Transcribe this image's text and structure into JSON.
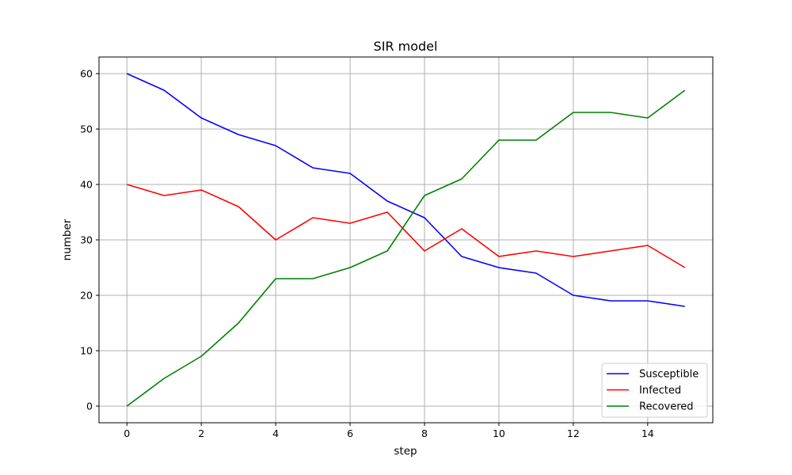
{
  "chart_data": {
    "type": "line",
    "title": "SIR model",
    "xlabel": "step",
    "ylabel": "number",
    "xlim": [
      -0.75,
      15.75
    ],
    "ylim": [
      -3,
      63
    ],
    "xticks": [
      0,
      2,
      4,
      6,
      8,
      10,
      12,
      14
    ],
    "yticks": [
      0,
      10,
      20,
      30,
      40,
      50,
      60
    ],
    "grid": true,
    "legend_position": "lower-right",
    "x": [
      0,
      1,
      2,
      3,
      4,
      5,
      6,
      7,
      8,
      9,
      10,
      11,
      12,
      13,
      14,
      15
    ],
    "series": [
      {
        "name": "Susceptible",
        "color": "#0000ff",
        "values": [
          60,
          57,
          52,
          49,
          47,
          43,
          42,
          37,
          34,
          27,
          25,
          24,
          20,
          19,
          19,
          18
        ]
      },
      {
        "name": "Infected",
        "color": "#ff0000",
        "values": [
          40,
          38,
          39,
          36,
          30,
          34,
          33,
          35,
          28,
          32,
          27,
          28,
          27,
          28,
          29,
          25
        ]
      },
      {
        "name": "Recovered",
        "color": "#008000",
        "values": [
          0,
          5,
          9,
          15,
          23,
          23,
          25,
          28,
          38,
          41,
          48,
          48,
          53,
          53,
          52,
          57
        ]
      }
    ]
  }
}
